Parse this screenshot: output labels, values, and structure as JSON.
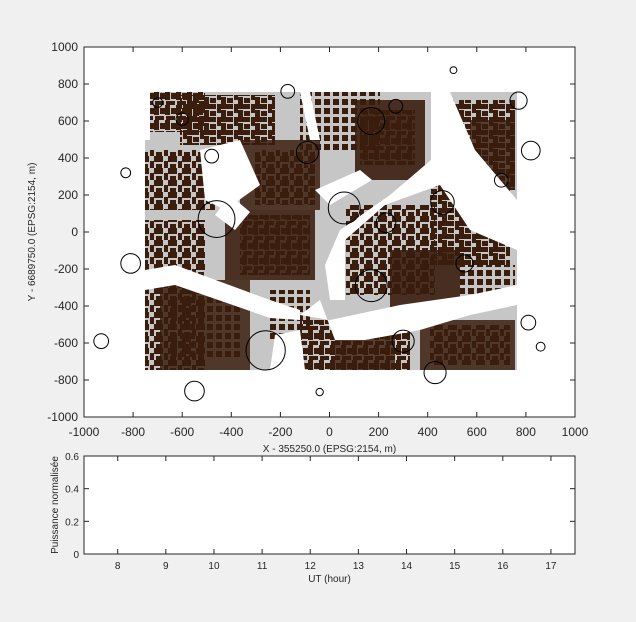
{
  "chart_data": [
    {
      "type": "map",
      "xlabel": "X - 355250.0 (EPSG:2154, m)",
      "ylabel": "Y - 6689750.0 (EPSG:2154, m)",
      "xlim": [
        -1000,
        1000
      ],
      "ylim": [
        -1000,
        1000
      ],
      "xticks": [
        -1000,
        -800,
        -600,
        -400,
        -200,
        0,
        200,
        400,
        600,
        800,
        1000
      ],
      "yticks": [
        -1000,
        -800,
        -600,
        -400,
        -200,
        0,
        200,
        400,
        600,
        800,
        1000
      ],
      "grid": false,
      "colors": {
        "buildings": "#3a1d0d",
        "ground": "#c6c6c6",
        "markers": "#000000"
      },
      "circles": [
        {
          "x": 505,
          "y": 875,
          "r": 14
        },
        {
          "x": -170,
          "y": 760,
          "r": 28
        },
        {
          "x": 770,
          "y": 710,
          "r": 35
        },
        {
          "x": -700,
          "y": 700,
          "r": 20
        },
        {
          "x": 270,
          "y": 680,
          "r": 28
        },
        {
          "x": -600,
          "y": 610,
          "r": 25
        },
        {
          "x": 170,
          "y": 600,
          "r": 55
        },
        {
          "x": 820,
          "y": 440,
          "r": 38
        },
        {
          "x": -90,
          "y": 430,
          "r": 45
        },
        {
          "x": -480,
          "y": 410,
          "r": 28
        },
        {
          "x": -830,
          "y": 320,
          "r": 20
        },
        {
          "x": 700,
          "y": 280,
          "r": 28
        },
        {
          "x": 460,
          "y": 160,
          "r": 48
        },
        {
          "x": 60,
          "y": 130,
          "r": 65
        },
        {
          "x": -460,
          "y": 70,
          "r": 75
        },
        {
          "x": 230,
          "y": 50,
          "r": 40
        },
        {
          "x": -810,
          "y": -170,
          "r": 40
        },
        {
          "x": 550,
          "y": -170,
          "r": 35
        },
        {
          "x": 170,
          "y": -290,
          "r": 65
        },
        {
          "x": 810,
          "y": -490,
          "r": 30
        },
        {
          "x": 300,
          "y": -590,
          "r": 45
        },
        {
          "x": -930,
          "y": -590,
          "r": 30
        },
        {
          "x": 860,
          "y": -620,
          "r": 18
        },
        {
          "x": -260,
          "y": -640,
          "r": 80
        },
        {
          "x": 430,
          "y": -760,
          "r": 45
        },
        {
          "x": -550,
          "y": -860,
          "r": 40
        },
        {
          "x": -40,
          "y": -865,
          "r": 15
        }
      ]
    },
    {
      "type": "line",
      "xlabel": "UT (hour)",
      "ylabel": "Puissance normalisée",
      "xlim": [
        7.3,
        17.5
      ],
      "ylim": [
        0,
        0.6
      ],
      "xticks": [
        8,
        9,
        10,
        11,
        12,
        13,
        14,
        15,
        16,
        17
      ],
      "yticks": [
        0,
        0.2,
        0.4,
        0.6
      ],
      "grid": false,
      "series": []
    }
  ]
}
